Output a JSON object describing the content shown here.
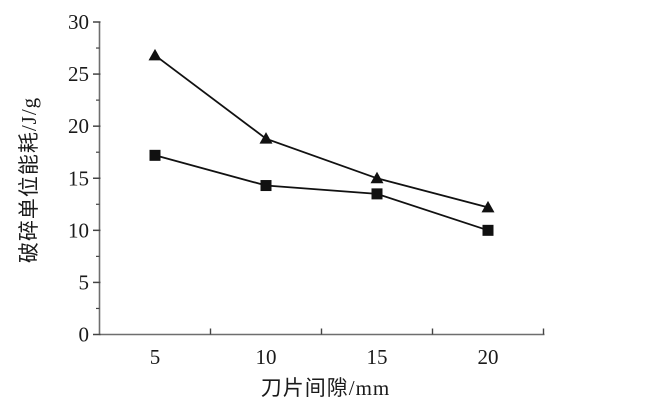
{
  "figure": {
    "background": "#ffffff",
    "axis_color": "#6e6e6e",
    "tick_color": "#444444",
    "line_color": "#111111",
    "text_color": "#1a1a1a"
  },
  "chart_data": {
    "type": "line",
    "title": "",
    "xlabel": "刀片间隙/mm",
    "ylabel": "破碎单位能耗/J/g",
    "categories": [
      5,
      10,
      15,
      20
    ],
    "x_tick_labels": [
      "5",
      "10",
      "15",
      "20"
    ],
    "y_ticks": [
      0,
      5,
      10,
      15,
      20,
      25,
      30
    ],
    "y_tick_labels": [
      "0",
      "5",
      "10",
      "15",
      "20",
      "25",
      "30"
    ],
    "y_minor_step": 2.5,
    "ylim": [
      0,
      30
    ],
    "grid": false,
    "legend": "none",
    "x_axis_style": "category-boundary-ticks",
    "series": [
      {
        "name": "triangle-series",
        "marker": "triangle",
        "color": "#111111",
        "values": [
          26.8,
          18.8,
          15.0,
          12.2
        ]
      },
      {
        "name": "square-series",
        "marker": "square",
        "color": "#111111",
        "values": [
          17.2,
          14.3,
          13.5,
          10.0
        ]
      }
    ]
  }
}
